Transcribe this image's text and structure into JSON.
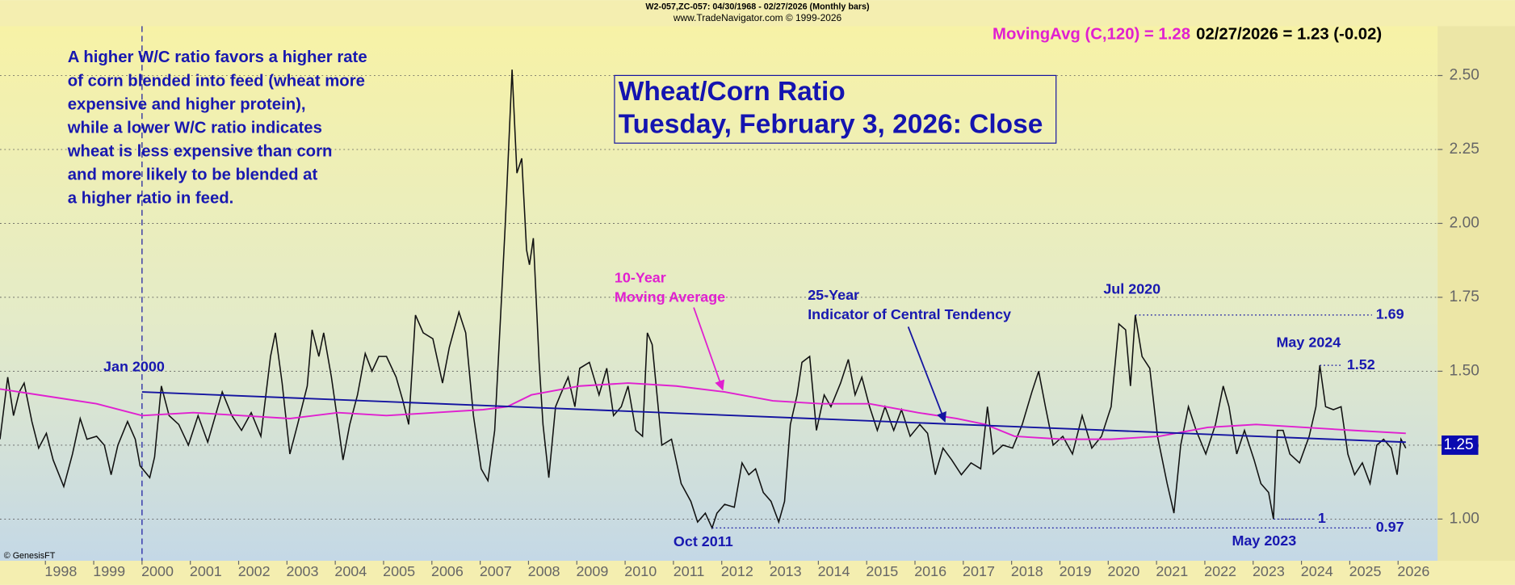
{
  "chart_data": {
    "type": "line",
    "header": "W2-057,ZC-057:  04/30/1968 - 02/27/2026  (Monthly bars)",
    "source": "www.TradeNavigator.com © 1999-2026",
    "indicator_label": "MovingAvg (C,120) = 1.28",
    "last_label": "02/27/2026 = 1.23 (-0.02)",
    "title": [
      "Wheat/Corn Ratio",
      "Tuesday, February 3, 2026: Close"
    ],
    "note": [
      "A higher W/C ratio favors a higher rate",
      "of corn blended into feed (wheat more",
      "expensive and higher protein),",
      "while a lower W/C ratio indicates",
      "wheat is less expensive than corn",
      "and more likely to be blended at",
      "a higher ratio in feed."
    ],
    "credit": "© GenesisFT",
    "annotations": {
      "jan2000": "Jan 2000",
      "oct2011": "Oct 2011",
      "jul2020": "Jul 2020",
      "may2024": "May 2024",
      "may2023": "May 2023",
      "ma": [
        "10-Year",
        "Moving Average"
      ],
      "trend": [
        "25-Year",
        "Indicator of Central Tendency"
      ]
    },
    "vline_x": 2000,
    "levels": [
      {
        "value": 1.69,
        "x": 2020.56
      },
      {
        "value": 1.52,
        "x": 2024.38
      },
      {
        "value": 1.0,
        "x": 2023.42
      },
      {
        "value": 0.97,
        "x": 2011.8
      }
    ],
    "price_marker": 1.25,
    "xlim": [
      1997.06,
      2026.82
    ],
    "ylim": [
      0.859,
      2.667
    ],
    "xticks": [
      1998,
      1999,
      2000,
      2001,
      2002,
      2003,
      2004,
      2005,
      2006,
      2007,
      2008,
      2009,
      2010,
      2011,
      2012,
      2013,
      2014,
      2015,
      2016,
      2017,
      2018,
      2019,
      2020,
      2021,
      2022,
      2023,
      2024,
      2025,
      2026
    ],
    "yticks": [
      {
        "value": 1.0,
        "label": "1.00"
      },
      1.25,
      {
        "value": 1.5,
        "label": "1.50"
      },
      1.75,
      {
        "value": 2.0,
        "label": "2.00"
      },
      2.25,
      {
        "value": 2.5,
        "label": "2.50"
      }
    ],
    "grid": true,
    "series": [
      {
        "color": "#111111",
        "x": [
          1997.06,
          1997.22,
          1997.34,
          1997.46,
          1997.56,
          1997.72,
          1997.86,
          1998.02,
          1998.16,
          1998.38,
          1998.56,
          1998.72,
          1998.86,
          1999.06,
          1999.22,
          1999.36,
          1999.5,
          1999.7,
          1999.86,
          1999.96,
          2000.16,
          2000.26,
          2000.4,
          2000.56,
          2000.76,
          2000.96,
          2001.16,
          2001.36,
          2001.66,
          2001.86,
          2002.06,
          2002.26,
          2002.46,
          2002.66,
          2002.76,
          2002.9,
          2003.06,
          2003.22,
          2003.42,
          2003.52,
          2003.66,
          2003.76,
          2003.92,
          2004.06,
          2004.16,
          2004.3,
          2004.46,
          2004.62,
          2004.76,
          2004.9,
          2005.06,
          2005.26,
          2005.4,
          2005.52,
          2005.66,
          2005.82,
          2006.02,
          2006.22,
          2006.36,
          2006.56,
          2006.7,
          2006.86,
          2007.02,
          2007.16,
          2007.3,
          2007.42,
          2007.52,
          2007.66,
          2007.76,
          2007.86,
          2007.96,
          2008.02,
          2008.1,
          2008.22,
          2008.3,
          2008.42,
          2008.56,
          2008.66,
          2008.82,
          2008.96,
          2009.06,
          2009.26,
          2009.46,
          2009.62,
          2009.76,
          2009.92,
          2010.06,
          2010.22,
          2010.36,
          2010.46,
          2010.56,
          2010.76,
          2010.96,
          2011.16,
          2011.36,
          2011.5,
          2011.66,
          2011.8,
          2011.9,
          2012.06,
          2012.26,
          2012.42,
          2012.56,
          2012.7,
          2012.86,
          2013.02,
          2013.18,
          2013.3,
          2013.42,
          2013.56,
          2013.66,
          2013.82,
          2013.96,
          2014.12,
          2014.26,
          2014.46,
          2014.62,
          2014.76,
          2014.9,
          2015.06,
          2015.22,
          2015.38,
          2015.56,
          2015.72,
          2015.9,
          2016.1,
          2016.26,
          2016.42,
          2016.58,
          2016.76,
          2016.96,
          2017.16,
          2017.36,
          2017.5,
          2017.62,
          2017.82,
          2018.02,
          2018.22,
          2018.42,
          2018.56,
          2018.7,
          2018.86,
          2019.06,
          2019.26,
          2019.46,
          2019.66,
          2019.86,
          2020.06,
          2020.22,
          2020.36,
          2020.46,
          2020.56,
          2020.7,
          2020.86,
          2021.02,
          2021.22,
          2021.36,
          2021.5,
          2021.66,
          2021.82,
          2022.02,
          2022.22,
          2022.38,
          2022.5,
          2022.66,
          2022.82,
          2023.02,
          2023.16,
          2023.32,
          2023.42,
          2023.5,
          2023.62,
          2023.76,
          2023.96,
          2024.16,
          2024.3,
          2024.38,
          2024.5,
          2024.66,
          2024.82,
          2024.96,
          2025.1,
          2025.26,
          2025.42,
          2025.56,
          2025.7,
          2025.86,
          2025.98,
          2026.06,
          2026.16
        ],
        "values": [
          1.27,
          1.48,
          1.35,
          1.43,
          1.46,
          1.33,
          1.24,
          1.29,
          1.2,
          1.11,
          1.22,
          1.34,
          1.27,
          1.28,
          1.25,
          1.15,
          1.25,
          1.33,
          1.27,
          1.18,
          1.14,
          1.21,
          1.45,
          1.35,
          1.32,
          1.25,
          1.35,
          1.26,
          1.43,
          1.35,
          1.3,
          1.36,
          1.28,
          1.55,
          1.63,
          1.46,
          1.22,
          1.32,
          1.45,
          1.64,
          1.55,
          1.63,
          1.48,
          1.32,
          1.2,
          1.32,
          1.42,
          1.56,
          1.5,
          1.55,
          1.55,
          1.48,
          1.4,
          1.32,
          1.69,
          1.63,
          1.61,
          1.46,
          1.58,
          1.7,
          1.63,
          1.35,
          1.17,
          1.13,
          1.3,
          1.68,
          2.0,
          2.52,
          2.17,
          2.22,
          1.91,
          1.86,
          1.95,
          1.53,
          1.32,
          1.14,
          1.38,
          1.42,
          1.48,
          1.38,
          1.51,
          1.53,
          1.42,
          1.51,
          1.35,
          1.38,
          1.45,
          1.3,
          1.28,
          1.63,
          1.59,
          1.25,
          1.27,
          1.12,
          1.06,
          0.99,
          1.02,
          0.97,
          1.02,
          1.05,
          1.04,
          1.19,
          1.15,
          1.17,
          1.09,
          1.06,
          0.99,
          1.06,
          1.32,
          1.42,
          1.53,
          1.55,
          1.3,
          1.42,
          1.38,
          1.46,
          1.54,
          1.42,
          1.48,
          1.38,
          1.3,
          1.38,
          1.3,
          1.37,
          1.28,
          1.32,
          1.29,
          1.15,
          1.24,
          1.2,
          1.15,
          1.19,
          1.17,
          1.38,
          1.22,
          1.25,
          1.24,
          1.32,
          1.43,
          1.5,
          1.38,
          1.25,
          1.28,
          1.22,
          1.35,
          1.24,
          1.28,
          1.38,
          1.66,
          1.64,
          1.45,
          1.69,
          1.55,
          1.51,
          1.28,
          1.12,
          1.02,
          1.25,
          1.38,
          1.3,
          1.22,
          1.32,
          1.45,
          1.38,
          1.22,
          1.3,
          1.2,
          1.12,
          1.09,
          1.0,
          1.3,
          1.3,
          1.22,
          1.19,
          1.28,
          1.38,
          1.52,
          1.38,
          1.37,
          1.38,
          1.22,
          1.15,
          1.19,
          1.12,
          1.25,
          1.27,
          1.24,
          1.15,
          1.27,
          1.24
        ]
      },
      {
        "color": "#e020d0",
        "x": [
          1997.06,
          1998.26,
          1999.06,
          2000.0,
          2001.06,
          2002.06,
          2003.06,
          2004.06,
          2005.06,
          2006.06,
          2007.06,
          2007.56,
          2008.06,
          2009.06,
          2010.06,
          2011.06,
          2012.06,
          2013.06,
          2014.06,
          2015.06,
          2016.06,
          2016.86,
          2017.46,
          2018.06,
          2019.06,
          2020.06,
          2021.06,
          2022.06,
          2023.06,
          2024.06,
          2025.06,
          2026.16
        ],
        "values": [
          1.44,
          1.41,
          1.39,
          1.35,
          1.36,
          1.35,
          1.34,
          1.36,
          1.35,
          1.36,
          1.37,
          1.38,
          1.42,
          1.45,
          1.46,
          1.45,
          1.43,
          1.4,
          1.39,
          1.39,
          1.36,
          1.34,
          1.32,
          1.28,
          1.27,
          1.27,
          1.28,
          1.31,
          1.32,
          1.31,
          1.3,
          1.29
        ]
      },
      {
        "color": "#1414a0",
        "x": [
          2000.0,
          2026.16
        ],
        "values": [
          1.43,
          1.26
        ]
      }
    ]
  }
}
